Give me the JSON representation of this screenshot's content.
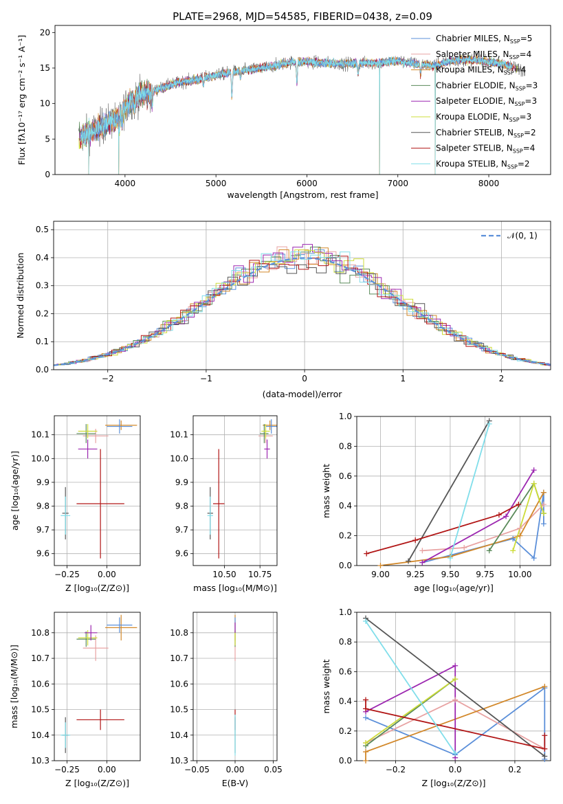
{
  "figure": {
    "title": "PLATE=2968, MJD=54585, FIBERID=0438, z=0.09"
  },
  "colors": {
    "cm": "#5b8fd9",
    "sm": "#e8a3a3",
    "km": "#d2882a",
    "ce": "#5a8a5a",
    "se": "#9c27b0",
    "ke": "#cddc39",
    "cs": "#555555",
    "ss": "#b11515",
    "ks": "#80deea",
    "normal": "#5b8fd9"
  },
  "chart_data": [
    {
      "id": "spectrum",
      "type": "line",
      "xlabel": "wavelength [Angstrom, rest frame]",
      "ylabel": "Flux [fλ10⁻¹⁷ erg cm⁻² s⁻¹ A⁻¹]",
      "xlim": [
        3230,
        8680
      ],
      "ylim": [
        0,
        21
      ],
      "xticks": [
        4000,
        5000,
        6000,
        7000,
        8000
      ],
      "yticks": [
        0,
        5,
        10,
        15,
        20
      ],
      "legend_position": "top-right",
      "legend": [
        {
          "key": "cm",
          "label": "Chabrier MILES, N",
          "sub": "SSP",
          "suffix": "=5"
        },
        {
          "key": "sm",
          "label": "Salpeter MILES, N",
          "sub": "SSP",
          "suffix": "=4"
        },
        {
          "key": "km",
          "label": "Kroupa MILES, N",
          "sub": "SSP",
          "suffix": "=4"
        },
        {
          "key": "ce",
          "label": "Chabrier ELODIE, N",
          "sub": "SSP",
          "suffix": "=3"
        },
        {
          "key": "se",
          "label": "Salpeter ELODIE, N",
          "sub": "SSP",
          "suffix": "=3"
        },
        {
          "key": "ke",
          "label": "Kroupa ELODIE, N",
          "sub": "SSP",
          "suffix": "=3"
        },
        {
          "key": "cs",
          "label": "Chabrier STELIB, N",
          "sub": "SSP",
          "suffix": "=2"
        },
        {
          "key": "ss",
          "label": "Salpeter STELIB, N",
          "sub": "SSP",
          "suffix": "=4"
        },
        {
          "key": "ks",
          "label": "Kroupa STELIB, N",
          "sub": "SSP",
          "suffix": "=2"
        }
      ],
      "continuum": [
        [
          3500,
          5.2
        ],
        [
          3700,
          6.5
        ],
        [
          3900,
          7.8
        ],
        [
          4000,
          9.5
        ],
        [
          4100,
          10.8
        ],
        [
          4200,
          11.2
        ],
        [
          4400,
          12.2
        ],
        [
          4600,
          13.0
        ],
        [
          4800,
          13.4
        ],
        [
          5000,
          14.0
        ],
        [
          5200,
          14.5
        ],
        [
          5400,
          14.8
        ],
        [
          5600,
          15.2
        ],
        [
          5800,
          15.8
        ],
        [
          6000,
          15.9
        ],
        [
          6200,
          15.7
        ],
        [
          6400,
          15.6
        ],
        [
          6600,
          15.7
        ],
        [
          6800,
          15.7
        ],
        [
          7000,
          16.0
        ],
        [
          7200,
          15.6
        ],
        [
          7400,
          15.3
        ],
        [
          7600,
          16.1
        ],
        [
          7800,
          16.2
        ],
        [
          8000,
          15.9
        ],
        [
          8200,
          15.4
        ],
        [
          8400,
          14.6
        ]
      ],
      "features": [
        [
          3934,
          2.0
        ],
        [
          3968,
          1.5
        ],
        [
          4102,
          1.0
        ],
        [
          4300,
          2.0
        ],
        [
          4861,
          1.0
        ],
        [
          5175,
          3.5
        ],
        [
          5270,
          1.0
        ],
        [
          5890,
          3.0
        ],
        [
          6563,
          1.5
        ],
        [
          7250,
          1.5
        ]
      ],
      "spikes": [
        [
          3600,
          0.0
        ],
        [
          3930,
          0.0
        ],
        [
          6800,
          0.0
        ],
        [
          7410,
          0.0
        ]
      ]
    },
    {
      "id": "residuals",
      "type": "step",
      "xlabel": "(data-model)/error",
      "ylabel": "Normed distribution",
      "xlim": [
        -2.55,
        2.5
      ],
      "ylim": [
        0,
        0.53
      ],
      "xticks": [
        -2,
        -1,
        0,
        1,
        2
      ],
      "yticks": [
        0.0,
        0.1,
        0.2,
        0.3,
        0.4,
        0.5
      ],
      "legend_label": "𝒩(0, 1)",
      "legend_position": "top-right",
      "bin_width": 0.1
    },
    {
      "id": "age-vs-Z",
      "type": "errorbar",
      "xlabel": "Z [log₁₀(Z/Z⊙)]",
      "ylabel": "age  [log₁₀(age/yr)]",
      "xlim": [
        -0.33,
        0.21
      ],
      "ylim": [
        9.55,
        10.18
      ],
      "xticks": [
        -0.25,
        0.0
      ],
      "xticklabels": [
        "−0.25",
        "0.00"
      ],
      "yticks": [
        9.6,
        9.7,
        9.8,
        9.9,
        10.0,
        10.1
      ],
      "points": [
        {
          "key": "km",
          "x": 0.09,
          "xerr": 0.1,
          "y": 10.14,
          "yerr": 0.02
        },
        {
          "key": "cm",
          "x": 0.08,
          "xerr": 0.08,
          "y": 10.135,
          "yerr": 0.03
        },
        {
          "key": "sm",
          "x": -0.07,
          "xerr": 0.08,
          "y": 10.095,
          "yerr": 0.03
        },
        {
          "key": "ce",
          "x": -0.13,
          "xerr": 0.06,
          "y": 10.105,
          "yerr": 0.04
        },
        {
          "key": "ke",
          "x": -0.12,
          "xerr": 0.06,
          "y": 10.115,
          "yerr": 0.03
        },
        {
          "key": "se",
          "x": -0.12,
          "xerr": 0.06,
          "y": 10.04,
          "yerr": 0.04
        },
        {
          "key": "ss",
          "x": -0.04,
          "xerr": 0.15,
          "y": 9.81,
          "yerr": 0.23
        },
        {
          "key": "cs",
          "x": -0.26,
          "xerr": 0.02,
          "y": 9.77,
          "yerr": 0.11
        },
        {
          "key": "ks",
          "x": -0.26,
          "xerr": 0.03,
          "y": 9.76,
          "yerr": 0.08
        }
      ]
    },
    {
      "id": "age-vs-mass",
      "type": "errorbar",
      "xlabel": "mass [log₁₀(M/M⊙)]",
      "xlim": [
        10.28,
        10.87
      ],
      "ylim": [
        9.55,
        10.18
      ],
      "xticks": [
        10.5,
        10.75
      ],
      "xticklabels": [
        "10.50",
        "10.75"
      ],
      "yticks": [
        9.6,
        9.7,
        9.8,
        9.9,
        10.0,
        10.1
      ],
      "points": [
        {
          "key": "km",
          "x": 10.82,
          "xerr": 0.05,
          "y": 10.14,
          "yerr": 0.02
        },
        {
          "key": "cm",
          "x": 10.83,
          "xerr": 0.04,
          "y": 10.135,
          "yerr": 0.03
        },
        {
          "key": "sm",
          "x": 10.79,
          "xerr": 0.05,
          "y": 10.095,
          "yerr": 0.03
        },
        {
          "key": "ce",
          "x": 10.78,
          "xerr": 0.03,
          "y": 10.105,
          "yerr": 0.04
        },
        {
          "key": "ke",
          "x": 10.79,
          "xerr": 0.03,
          "y": 10.115,
          "yerr": 0.03
        },
        {
          "key": "se",
          "x": 10.8,
          "xerr": 0.02,
          "y": 10.04,
          "yerr": 0.04
        },
        {
          "key": "ss",
          "x": 10.46,
          "xerr": 0.04,
          "y": 9.81,
          "yerr": 0.23
        },
        {
          "key": "cs",
          "x": 10.4,
          "xerr": 0.02,
          "y": 9.77,
          "yerr": 0.11
        },
        {
          "key": "ks",
          "x": 10.4,
          "xerr": 0.02,
          "y": 9.76,
          "yerr": 0.08
        }
      ]
    },
    {
      "id": "weight-vs-age",
      "type": "line",
      "xlabel": "age  [log₁₀(age/yr)]",
      "ylabel": "mass weight",
      "xlim": [
        8.83,
        10.22
      ],
      "ylim": [
        0,
        1
      ],
      "xticks": [
        9.0,
        9.25,
        9.5,
        9.75,
        10.0
      ],
      "xticklabels": [
        "9.00",
        "9.25",
        "9.50",
        "9.75",
        "10.00"
      ],
      "yticks": [
        0.0,
        0.2,
        0.4,
        0.6,
        0.8,
        1.0
      ],
      "series": [
        {
          "key": "cm",
          "x": [
            9.3,
            9.95,
            10.1,
            10.17,
            10.17
          ],
          "y": [
            0.02,
            0.18,
            0.05,
            0.49,
            0.28
          ]
        },
        {
          "key": "sm",
          "x": [
            9.3,
            9.6,
            10.0,
            10.17
          ],
          "y": [
            0.1,
            0.12,
            0.25,
            0.41
          ]
        },
        {
          "key": "km",
          "x": [
            9.0,
            9.5,
            10.0,
            10.17
          ],
          "y": [
            0.0,
            0.06,
            0.2,
            0.49
          ]
        },
        {
          "key": "ce",
          "x": [
            9.78,
            10.1,
            10.17
          ],
          "y": [
            0.1,
            0.55,
            0.35
          ]
        },
        {
          "key": "se",
          "x": [
            9.3,
            9.9,
            10.1
          ],
          "y": [
            0.02,
            0.33,
            0.64
          ]
        },
        {
          "key": "ke",
          "x": [
            9.95,
            10.1,
            10.17
          ],
          "y": [
            0.1,
            0.55,
            0.35
          ]
        },
        {
          "key": "cs",
          "x": [
            9.2,
            9.78
          ],
          "y": [
            0.03,
            0.97
          ]
        },
        {
          "key": "ss",
          "x": [
            8.9,
            9.25,
            9.85,
            9.99
          ],
          "y": [
            0.08,
            0.17,
            0.34,
            0.41
          ]
        },
        {
          "key": "ks",
          "x": [
            9.5,
            9.78
          ],
          "y": [
            0.05,
            0.95
          ]
        }
      ]
    },
    {
      "id": "mass-vs-Z",
      "type": "errorbar",
      "xlabel": "Z [log₁₀(Z/Z⊙)]",
      "ylabel": "mass [log₁₀(M/M⊙)]",
      "xlim": [
        -0.33,
        0.21
      ],
      "ylim": [
        10.3,
        10.88
      ],
      "xticks": [
        -0.25,
        0.0
      ],
      "xticklabels": [
        "−0.25",
        "0.00"
      ],
      "yticks": [
        10.3,
        10.4,
        10.5,
        10.6,
        10.7,
        10.8
      ],
      "points": [
        {
          "key": "km",
          "x": 0.09,
          "xerr": 0.1,
          "y": 10.82,
          "yerr": 0.05
        },
        {
          "key": "cm",
          "x": 0.08,
          "xerr": 0.08,
          "y": 10.83,
          "yerr": 0.03
        },
        {
          "key": "sm",
          "x": -0.07,
          "xerr": 0.08,
          "y": 10.74,
          "yerr": 0.05
        },
        {
          "key": "ce",
          "x": -0.13,
          "xerr": 0.06,
          "y": 10.775,
          "yerr": 0.03
        },
        {
          "key": "ke",
          "x": -0.12,
          "xerr": 0.06,
          "y": 10.78,
          "yerr": 0.03
        },
        {
          "key": "se",
          "x": -0.1,
          "xerr": 0.04,
          "y": 10.8,
          "yerr": 0.03
        },
        {
          "key": "ss",
          "x": -0.04,
          "xerr": 0.15,
          "y": 10.46,
          "yerr": 0.04
        },
        {
          "key": "cs",
          "x": -0.26,
          "xerr": 0.02,
          "y": 10.4,
          "yerr": 0.07
        },
        {
          "key": "ks",
          "x": -0.26,
          "xerr": 0.03,
          "y": 10.4,
          "yerr": 0.05
        }
      ]
    },
    {
      "id": "mass-vs-EBV",
      "type": "errorbar",
      "xlabel": "E(B-V)",
      "xlim": [
        -0.055,
        0.055
      ],
      "ylim": [
        10.3,
        10.88
      ],
      "xticks": [
        -0.05,
        0.0,
        0.05
      ],
      "xticklabels": [
        "−0.05",
        "0.00",
        "0.05"
      ],
      "yticks": [
        10.3,
        10.4,
        10.5,
        10.6,
        10.7,
        10.8
      ],
      "points": [
        {
          "key": "km",
          "x": 0.0,
          "xerr": 0.0,
          "y": 10.82,
          "yerr": 0.05
        },
        {
          "key": "cm",
          "x": 0.0,
          "xerr": 0.0,
          "y": 10.83,
          "yerr": 0.03
        },
        {
          "key": "sm",
          "x": 0.0,
          "xerr": 0.0,
          "y": 10.74,
          "yerr": 0.05
        },
        {
          "key": "ce",
          "x": 0.0,
          "xerr": 0.0,
          "y": 10.775,
          "yerr": 0.03
        },
        {
          "key": "ke",
          "x": 0.0,
          "xerr": 0.0,
          "y": 10.78,
          "yerr": 0.03
        },
        {
          "key": "se",
          "x": 0.0,
          "xerr": 0.0,
          "y": 10.82,
          "yerr": 0.02
        },
        {
          "key": "ss",
          "x": 0.0,
          "xerr": 0.0,
          "y": 10.46,
          "yerr": 0.04
        },
        {
          "key": "cs",
          "x": 0.0,
          "xerr": 0.0,
          "y": 10.4,
          "yerr": 0.07
        },
        {
          "key": "ks",
          "x": 0.0,
          "xerr": 0.0,
          "y": 10.4,
          "yerr": 0.08
        }
      ]
    },
    {
      "id": "weight-vs-Z",
      "type": "line",
      "xlabel": "Z [log₁₀(Z/Z⊙)]",
      "ylabel": "mass weight",
      "xlim": [
        -0.33,
        0.32
      ],
      "ylim": [
        0,
        1
      ],
      "xticks": [
        -0.2,
        0.0,
        0.2
      ],
      "xticklabels": [
        "−0.2",
        "0.0",
        "0.2"
      ],
      "yticks": [
        0.0,
        0.2,
        0.4,
        0.6,
        0.8,
        1.0
      ],
      "series": [
        {
          "key": "cm",
          "x": [
            -0.3,
            0.0,
            0.3,
            0.3
          ],
          "y": [
            0.29,
            0.04,
            0.49,
            0.01
          ]
        },
        {
          "key": "sm",
          "x": [
            -0.3,
            0.0,
            0.3
          ],
          "y": [
            0.12,
            0.41,
            0.08
          ]
        },
        {
          "key": "km",
          "x": [
            -0.3,
            -0.3,
            0.3
          ],
          "y": [
            0.0,
            0.06,
            0.5
          ]
        },
        {
          "key": "ce",
          "x": [
            -0.3,
            0.0
          ],
          "y": [
            0.1,
            0.55
          ]
        },
        {
          "key": "se",
          "x": [
            -0.3,
            0.0,
            0.0
          ],
          "y": [
            0.33,
            0.64,
            0.02
          ]
        },
        {
          "key": "ke",
          "x": [
            -0.3,
            0.0
          ],
          "y": [
            0.12,
            0.55
          ]
        },
        {
          "key": "cs",
          "x": [
            -0.3,
            0.3
          ],
          "y": [
            0.96,
            0.03
          ]
        },
        {
          "key": "ss",
          "x": [
            -0.3,
            -0.3,
            0.3,
            0.3
          ],
          "y": [
            0.41,
            0.35,
            0.08,
            0.17
          ]
        },
        {
          "key": "ks",
          "x": [
            -0.3,
            0.0
          ],
          "y": [
            0.94,
            0.05
          ]
        }
      ]
    }
  ]
}
